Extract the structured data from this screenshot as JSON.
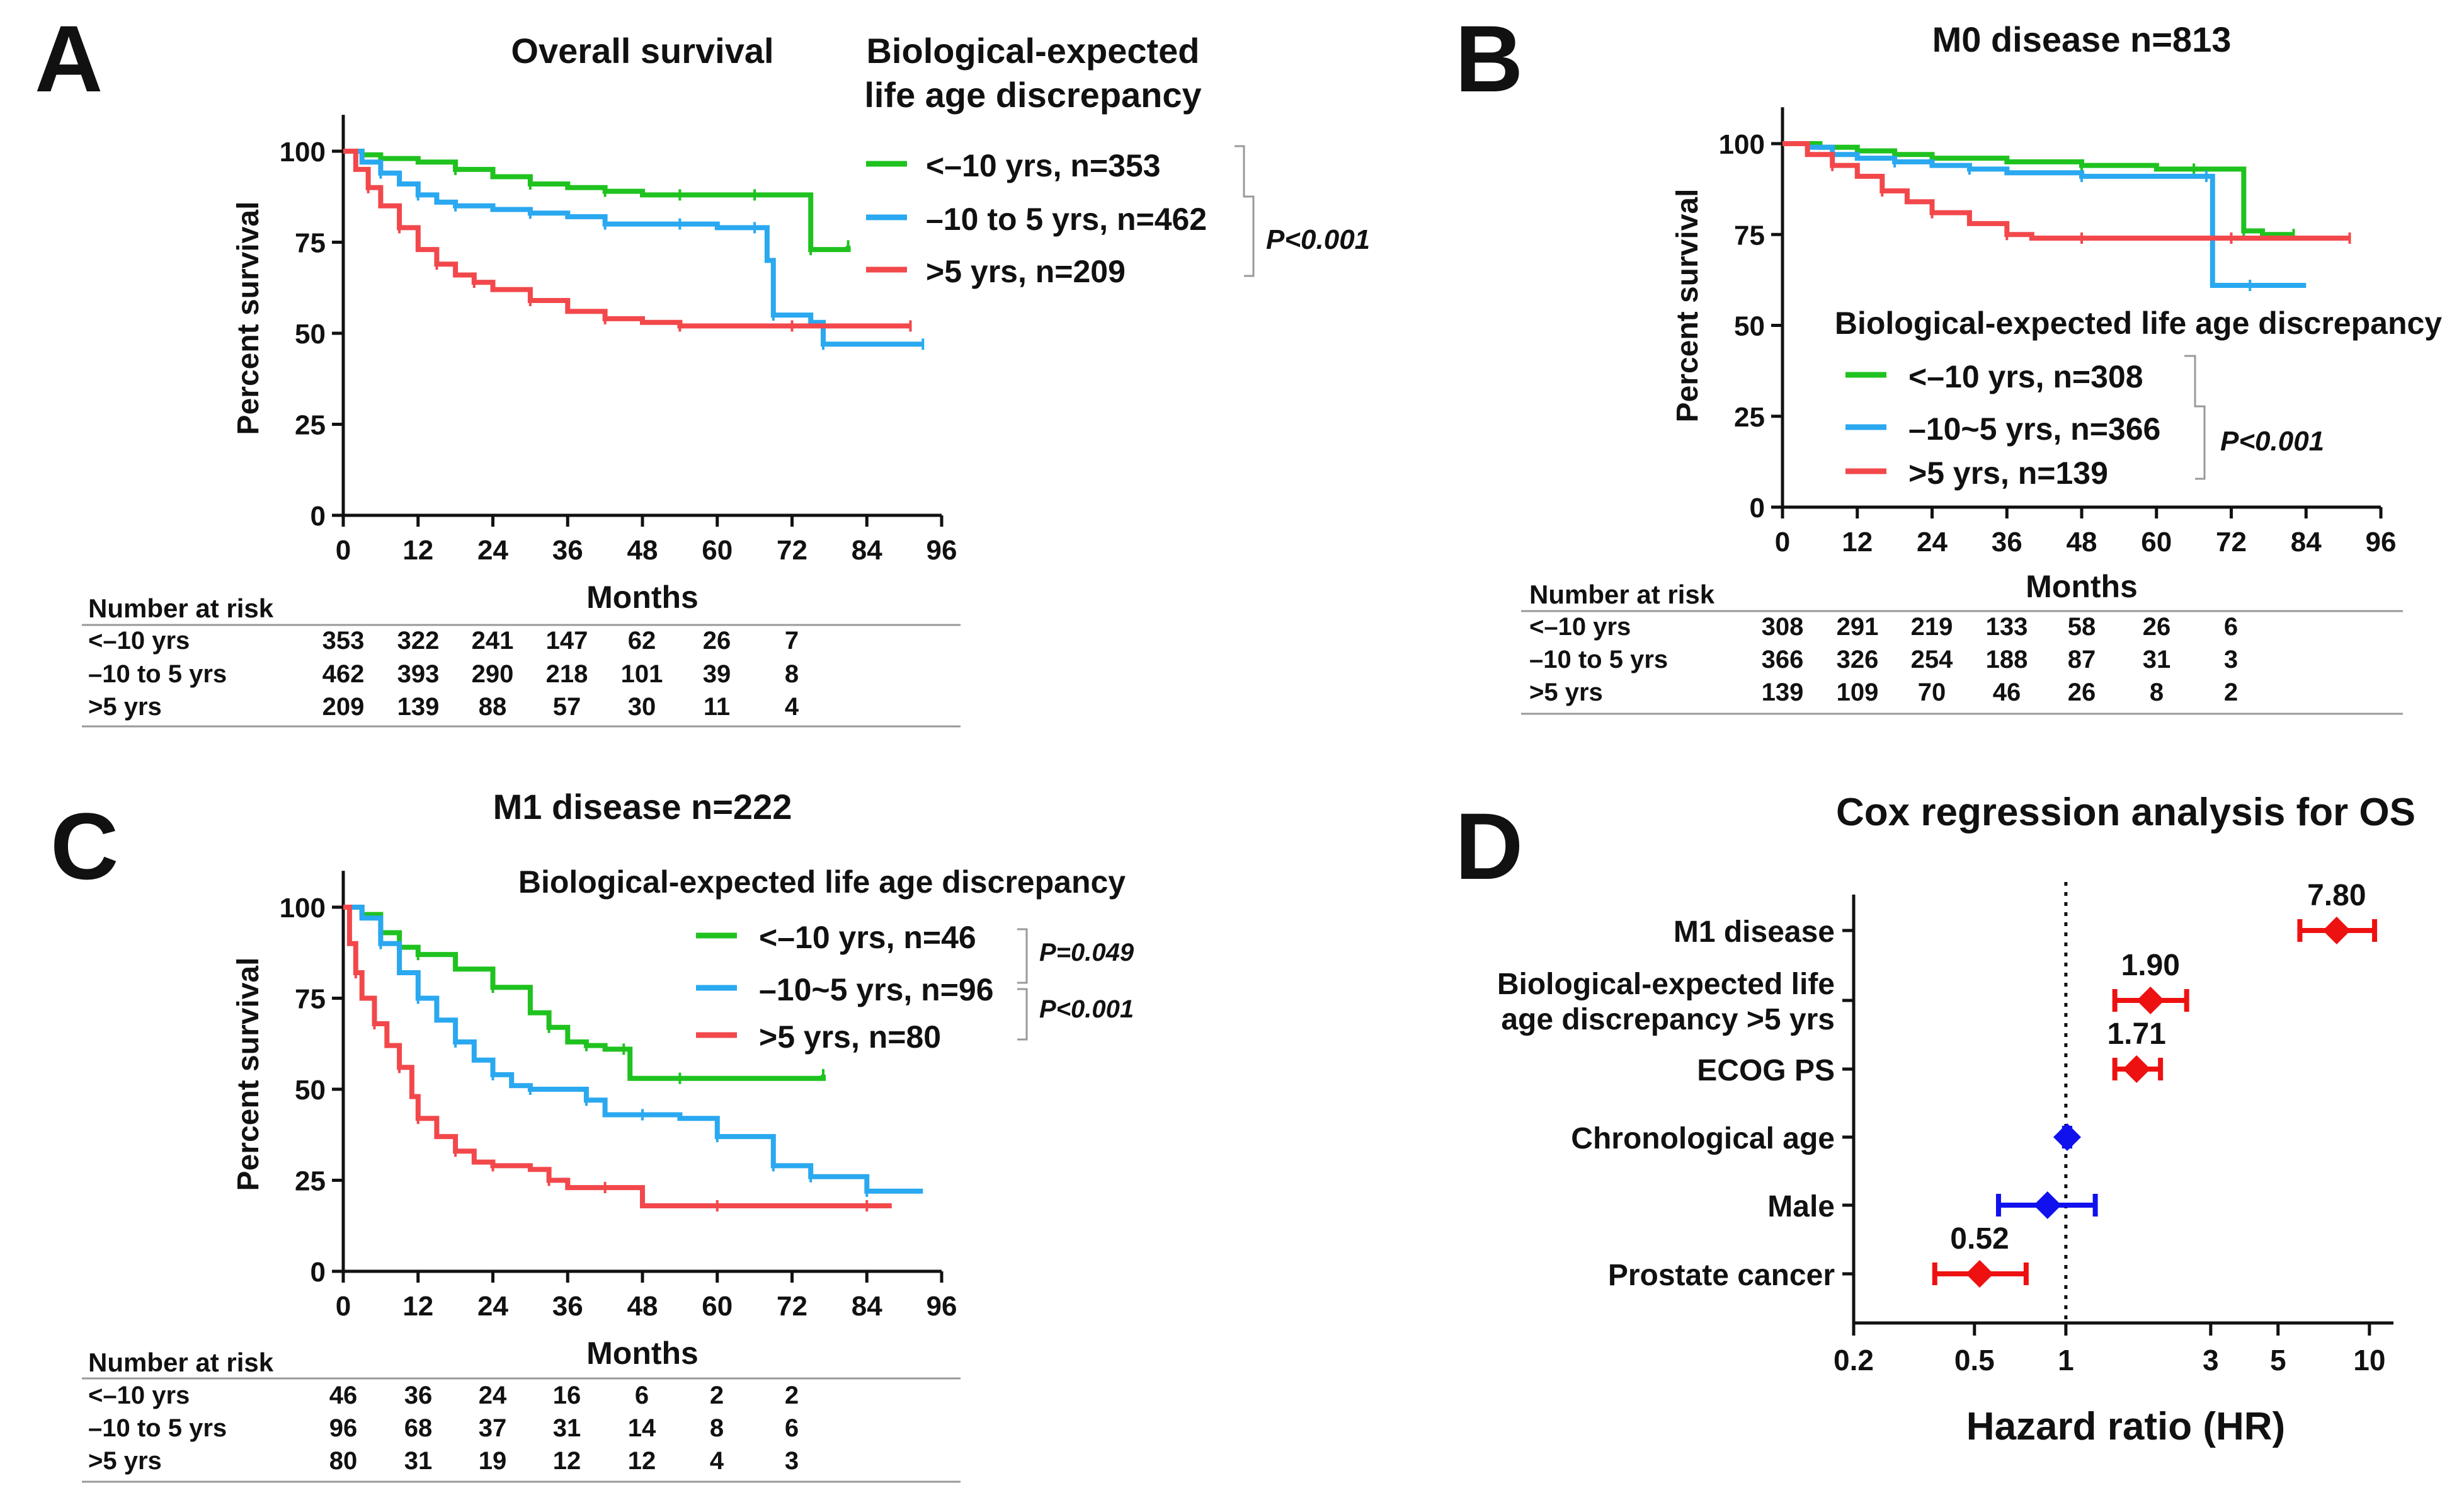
{
  "colors": {
    "green": "#1fc21f",
    "blue": "#2aa8f0",
    "red": "#f2484b",
    "ink": "#111111",
    "forest_red": "#ee1111",
    "forest_blue": "#1111ee",
    "table_rule": "#999999"
  },
  "panel_labels": [
    "A",
    "B",
    "C",
    "D"
  ],
  "km_panels": [
    {
      "id": "A",
      "title": "Overall survival",
      "legend_title_lines": [
        "Biological-expected",
        "life age discrepancy"
      ],
      "pvals": [
        "P<0.001"
      ],
      "ylabel": "Percent survival",
      "xlabel": "Months",
      "risk": {
        "header": "Number at risk",
        "rows": [
          {
            "label": "<–10 yrs",
            "values": [
              "353",
              "322",
              "241",
              "147",
              "62",
              "26",
              "7"
            ]
          },
          {
            "label": "–10 to 5 yrs",
            "values": [
              "462",
              "393",
              "290",
              "218",
              "101",
              "39",
              "8"
            ]
          },
          {
            "label": ">5 yrs",
            "values": [
              "209",
              "139",
              "88",
              "57",
              "30",
              "11",
              "4"
            ]
          }
        ]
      }
    },
    {
      "id": "B",
      "title": "M0 disease n=813",
      "legend_title_lines": [
        "Biological-expected life age discrepancy"
      ],
      "pvals": [
        "P<0.001"
      ],
      "ylabel": "Percent survival",
      "xlabel": "Months",
      "risk": {
        "header": "Number at risk",
        "rows": [
          {
            "label": "<–10 yrs",
            "values": [
              "308",
              "291",
              "219",
              "133",
              "58",
              "26",
              "6"
            ]
          },
          {
            "label": "–10 to 5 yrs",
            "values": [
              "366",
              "326",
              "254",
              "188",
              "87",
              "31",
              "3"
            ]
          },
          {
            "label": ">5 yrs",
            "values": [
              "139",
              "109",
              "70",
              "46",
              "26",
              "8",
              "2"
            ]
          }
        ]
      }
    },
    {
      "id": "C",
      "title": "M1 disease n=222",
      "legend_title_lines": [
        "Biological-expected life age discrepancy"
      ],
      "pvals": [
        "P=0.049",
        "P<0.001"
      ],
      "ylabel": "Percent survival",
      "xlabel": "Months",
      "risk": {
        "header": "Number at risk",
        "rows": [
          {
            "label": "<–10 yrs",
            "values": [
              "46",
              "36",
              "24",
              "16",
              "6",
              "2",
              "2"
            ]
          },
          {
            "label": "–10 to 5 yrs",
            "values": [
              "96",
              "68",
              "37",
              "31",
              "14",
              "8",
              "6"
            ]
          },
          {
            "label": ">5 yrs",
            "values": [
              "80",
              "31",
              "19",
              "12",
              "12",
              "4",
              "3"
            ]
          }
        ]
      }
    }
  ],
  "forest": {
    "title": "Cox regression analysis for OS",
    "xlabel": "Hazard ratio (HR)"
  },
  "chart_data": [
    {
      "type": "line",
      "panel": "A",
      "title": "Overall survival",
      "xlabel": "Months",
      "ylabel": "Percent survival",
      "xlim": [
        0,
        96
      ],
      "ylim": [
        0,
        110
      ],
      "xticks": [
        0,
        12,
        24,
        36,
        48,
        60,
        72,
        84,
        96
      ],
      "yticks": [
        0,
        25,
        50,
        75,
        100
      ],
      "series": [
        {
          "name": "<–10 yrs, n=353",
          "color": "green",
          "points": [
            [
              0,
              100
            ],
            [
              3,
              99
            ],
            [
              6,
              98
            ],
            [
              12,
              97
            ],
            [
              18,
              95
            ],
            [
              24,
              93
            ],
            [
              30,
              91
            ],
            [
              36,
              90
            ],
            [
              42,
              89
            ],
            [
              48,
              88
            ],
            [
              54,
              88
            ],
            [
              60,
              88
            ],
            [
              66,
              88
            ],
            [
              72,
              88
            ],
            [
              75,
              73
            ],
            [
              78,
              73
            ],
            [
              81,
              74
            ]
          ]
        },
        {
          "name": "–10 to 5 yrs, n=462",
          "color": "blue",
          "points": [
            [
              0,
              100
            ],
            [
              3,
              97
            ],
            [
              6,
              94
            ],
            [
              9,
              91
            ],
            [
              12,
              88
            ],
            [
              15,
              86
            ],
            [
              18,
              85
            ],
            [
              24,
              84
            ],
            [
              30,
              83
            ],
            [
              36,
              82
            ],
            [
              42,
              80
            ],
            [
              48,
              80
            ],
            [
              54,
              80
            ],
            [
              60,
              79
            ],
            [
              66,
              79
            ],
            [
              68,
              70
            ],
            [
              69,
              55
            ],
            [
              75,
              53
            ],
            [
              77,
              47
            ],
            [
              84,
              47
            ],
            [
              93,
              47
            ]
          ]
        },
        {
          "name": ">5 yrs, n=209",
          "color": "red",
          "points": [
            [
              0,
              100
            ],
            [
              2,
              95
            ],
            [
              4,
              90
            ],
            [
              6,
              85
            ],
            [
              9,
              79
            ],
            [
              12,
              73
            ],
            [
              15,
              69
            ],
            [
              18,
              66
            ],
            [
              21,
              64
            ],
            [
              24,
              62
            ],
            [
              30,
              59
            ],
            [
              36,
              56
            ],
            [
              42,
              54
            ],
            [
              48,
              53
            ],
            [
              54,
              52
            ],
            [
              60,
              52
            ],
            [
              72,
              52
            ],
            [
              84,
              52
            ],
            [
              91,
              52
            ]
          ]
        }
      ]
    },
    {
      "type": "line",
      "panel": "B",
      "title": "M0 disease n=813",
      "xlabel": "Months",
      "ylabel": "Percent survival",
      "xlim": [
        0,
        96
      ],
      "ylim": [
        0,
        110
      ],
      "xticks": [
        0,
        12,
        24,
        36,
        48,
        60,
        72,
        84,
        96
      ],
      "yticks": [
        0,
        25,
        50,
        75,
        100
      ],
      "series": [
        {
          "name": "<–10 yrs, n=308",
          "color": "green",
          "points": [
            [
              0,
              100
            ],
            [
              6,
              99
            ],
            [
              12,
              98
            ],
            [
              18,
              97
            ],
            [
              24,
              96
            ],
            [
              36,
              95
            ],
            [
              48,
              94
            ],
            [
              60,
              93
            ],
            [
              66,
              93
            ],
            [
              72,
              93
            ],
            [
              74,
              76
            ],
            [
              77,
              75
            ],
            [
              82,
              75
            ]
          ]
        },
        {
          "name": "–10~5 yrs, n=366",
          "color": "blue",
          "points": [
            [
              0,
              100
            ],
            [
              4,
              99
            ],
            [
              8,
              97
            ],
            [
              12,
              96
            ],
            [
              18,
              95
            ],
            [
              24,
              94
            ],
            [
              30,
              93
            ],
            [
              36,
              92
            ],
            [
              48,
              91
            ],
            [
              60,
              91
            ],
            [
              68,
              91
            ],
            [
              69,
              61
            ],
            [
              75,
              61
            ],
            [
              84,
              61
            ]
          ]
        },
        {
          "name": ">5 yrs, n=139",
          "color": "red",
          "points": [
            [
              0,
              100
            ],
            [
              4,
              97
            ],
            [
              8,
              94
            ],
            [
              12,
              91
            ],
            [
              16,
              87
            ],
            [
              20,
              84
            ],
            [
              24,
              81
            ],
            [
              30,
              78
            ],
            [
              36,
              75
            ],
            [
              40,
              74
            ],
            [
              48,
              74
            ],
            [
              60,
              74
            ],
            [
              72,
              74
            ],
            [
              84,
              74
            ],
            [
              91,
              74
            ]
          ]
        }
      ]
    },
    {
      "type": "line",
      "panel": "C",
      "title": "M1 disease n=222",
      "xlabel": "Months",
      "ylabel": "Percent survival",
      "xlim": [
        0,
        96
      ],
      "ylim": [
        0,
        110
      ],
      "xticks": [
        0,
        12,
        24,
        36,
        48,
        60,
        72,
        84,
        96
      ],
      "yticks": [
        0,
        25,
        50,
        75,
        100
      ],
      "series": [
        {
          "name": "<–10 yrs, n=46",
          "color": "green",
          "points": [
            [
              0,
              100
            ],
            [
              3,
              98
            ],
            [
              6,
              93
            ],
            [
              9,
              89
            ],
            [
              12,
              87
            ],
            [
              18,
              83
            ],
            [
              24,
              78
            ],
            [
              30,
              71
            ],
            [
              33,
              67
            ],
            [
              36,
              63
            ],
            [
              39,
              62
            ],
            [
              42,
              61
            ],
            [
              45,
              61
            ],
            [
              46,
              53
            ],
            [
              54,
              53
            ],
            [
              66,
              53
            ],
            [
              77,
              54
            ]
          ]
        },
        {
          "name": "–10~5 yrs, n=96",
          "color": "blue",
          "points": [
            [
              0,
              100
            ],
            [
              3,
              97
            ],
            [
              6,
              90
            ],
            [
              9,
              82
            ],
            [
              12,
              75
            ],
            [
              15,
              69
            ],
            [
              18,
              63
            ],
            [
              21,
              58
            ],
            [
              24,
              54
            ],
            [
              27,
              51
            ],
            [
              30,
              50
            ],
            [
              36,
              50
            ],
            [
              39,
              47
            ],
            [
              42,
              43
            ],
            [
              48,
              43
            ],
            [
              54,
              42
            ],
            [
              60,
              37
            ],
            [
              66,
              37
            ],
            [
              69,
              29
            ],
            [
              72,
              29
            ],
            [
              75,
              26
            ],
            [
              81,
              26
            ],
            [
              84,
              22
            ],
            [
              93,
              22
            ]
          ]
        },
        {
          "name": ">5 yrs, n=80",
          "color": "red",
          "points": [
            [
              0,
              100
            ],
            [
              1,
              90
            ],
            [
              2,
              82
            ],
            [
              3,
              75
            ],
            [
              5,
              68
            ],
            [
              7,
              62
            ],
            [
              9,
              56
            ],
            [
              11,
              48
            ],
            [
              12,
              42
            ],
            [
              15,
              37
            ],
            [
              18,
              33
            ],
            [
              21,
              30
            ],
            [
              24,
              29
            ],
            [
              30,
              28
            ],
            [
              33,
              25
            ],
            [
              36,
              23
            ],
            [
              42,
              23
            ],
            [
              48,
              18
            ],
            [
              60,
              18
            ],
            [
              72,
              18
            ],
            [
              84,
              18
            ],
            [
              88,
              18
            ]
          ]
        }
      ]
    },
    {
      "type": "scatter",
      "panel": "D",
      "subtype": "forest",
      "title": "Cox regression analysis for OS",
      "xlabel": "Hazard ratio (HR)",
      "xscale": "log",
      "xlim": [
        0.2,
        12
      ],
      "xticks": [
        0.2,
        0.5,
        1,
        3,
        5,
        10
      ],
      "xtick_labels": [
        "0.2",
        "0.5",
        "1",
        "3",
        "5",
        "10"
      ],
      "reference_line": 1,
      "rows": [
        {
          "label_lines": [
            "M1 disease"
          ],
          "hr": 7.8,
          "lo": 5.9,
          "hi": 10.4,
          "color": "red",
          "value_label": "7.80"
        },
        {
          "label_lines": [
            "Biological-expected life",
            "age discrepancy >5 yrs"
          ],
          "hr": 1.9,
          "lo": 1.45,
          "hi": 2.5,
          "color": "red",
          "value_label": "1.90"
        },
        {
          "label_lines": [
            "ECOG PS"
          ],
          "hr": 1.71,
          "lo": 1.45,
          "hi": 2.05,
          "color": "red",
          "value_label": "1.71"
        },
        {
          "label_lines": [
            "Chronological age"
          ],
          "hr": 1.01,
          "lo": 0.99,
          "hi": 1.03,
          "color": "blue",
          "value_label": ""
        },
        {
          "label_lines": [
            "Male"
          ],
          "hr": 0.87,
          "lo": 0.6,
          "hi": 1.25,
          "color": "blue",
          "value_label": ""
        },
        {
          "label_lines": [
            "Prostate cancer"
          ],
          "hr": 0.52,
          "lo": 0.37,
          "hi": 0.74,
          "color": "red",
          "value_label": "0.52"
        }
      ]
    }
  ]
}
